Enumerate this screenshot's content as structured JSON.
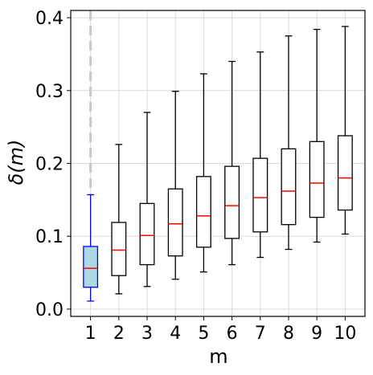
{
  "chart_data": {
    "type": "box",
    "title": "",
    "xlabel": "m",
    "ylabel": "δ(m)",
    "ylim": [
      -0.01,
      0.41
    ],
    "y_ticks": [
      0.0,
      0.1,
      0.2,
      0.3,
      0.4
    ],
    "y_tick_labels": [
      "0.0",
      "0.1",
      "0.2",
      "0.3",
      "0.4"
    ],
    "categories": [
      "1",
      "2",
      "3",
      "4",
      "5",
      "6",
      "7",
      "8",
      "9",
      "10"
    ],
    "grid": true,
    "highlight_category": "1",
    "highlight_reference_line": "dashed vertical line at m = 1",
    "boxes": [
      {
        "m": "1",
        "whisker_low": 0.011,
        "q1": 0.03,
        "median": 0.056,
        "q3": 0.086,
        "whisker_high": 0.157
      },
      {
        "m": "2",
        "whisker_low": 0.021,
        "q1": 0.046,
        "median": 0.081,
        "q3": 0.119,
        "whisker_high": 0.226
      },
      {
        "m": "3",
        "whisker_low": 0.031,
        "q1": 0.061,
        "median": 0.101,
        "q3": 0.145,
        "whisker_high": 0.27
      },
      {
        "m": "4",
        "whisker_low": 0.041,
        "q1": 0.073,
        "median": 0.117,
        "q3": 0.165,
        "whisker_high": 0.299
      },
      {
        "m": "5",
        "whisker_low": 0.051,
        "q1": 0.085,
        "median": 0.128,
        "q3": 0.182,
        "whisker_high": 0.323
      },
      {
        "m": "6",
        "whisker_low": 0.061,
        "q1": 0.097,
        "median": 0.142,
        "q3": 0.196,
        "whisker_high": 0.34
      },
      {
        "m": "7",
        "whisker_low": 0.071,
        "q1": 0.106,
        "median": 0.153,
        "q3": 0.207,
        "whisker_high": 0.353
      },
      {
        "m": "8",
        "whisker_low": 0.082,
        "q1": 0.116,
        "median": 0.162,
        "q3": 0.22,
        "whisker_high": 0.375
      },
      {
        "m": "9",
        "whisker_low": 0.092,
        "q1": 0.126,
        "median": 0.173,
        "q3": 0.23,
        "whisker_high": 0.384
      },
      {
        "m": "10",
        "whisker_low": 0.103,
        "q1": 0.136,
        "median": 0.18,
        "q3": 0.238,
        "whisker_high": 0.388
      }
    ],
    "colors": {
      "box_edge": "#000000",
      "median": "#ff0000",
      "highlight_edge": "#0000ff",
      "highlight_fill": "#add8e6",
      "grid": "#d9d9d9",
      "reference_line": "#c8c8c8"
    }
  }
}
